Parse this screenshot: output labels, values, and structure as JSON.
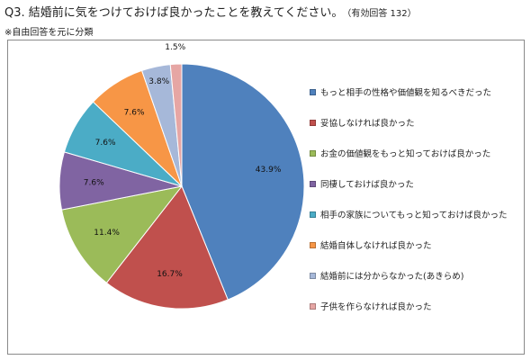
{
  "header": {
    "title": "Q3. 結婚前に気をつけておけば良かったことを教えてください。",
    "count": "（有効回答 132）",
    "note": "※自由回答を元に分類"
  },
  "chart_data": {
    "type": "pie",
    "categories": [
      "もっと相手の性格や価値観を知るべきだった",
      "妥協しなければ良かった",
      "お金の価値観をもっと知っておけば良かった",
      "同棲しておけば良かった",
      "相手の家族についてもっと知っておけば良かった",
      "結婚自体しなければ良かった",
      "結婚前には分からなかった(あきらめ)",
      "子供を作らなければ良かった"
    ],
    "values": [
      43.9,
      16.7,
      11.4,
      7.6,
      7.6,
      7.6,
      3.8,
      1.5
    ],
    "labels": [
      "43.9%",
      "16.7%",
      "11.4%",
      "7.6%",
      "7.6%",
      "7.6%",
      "3.8%",
      "1.5%"
    ],
    "colors": [
      "#4f81bd",
      "#c0504d",
      "#9bbb59",
      "#8064a2",
      "#4bacc6",
      "#f79646",
      "#a6b8d9",
      "#e6a6a4"
    ],
    "start": "12 o'clock",
    "direction": "clockwise",
    "legend_position": "right"
  }
}
